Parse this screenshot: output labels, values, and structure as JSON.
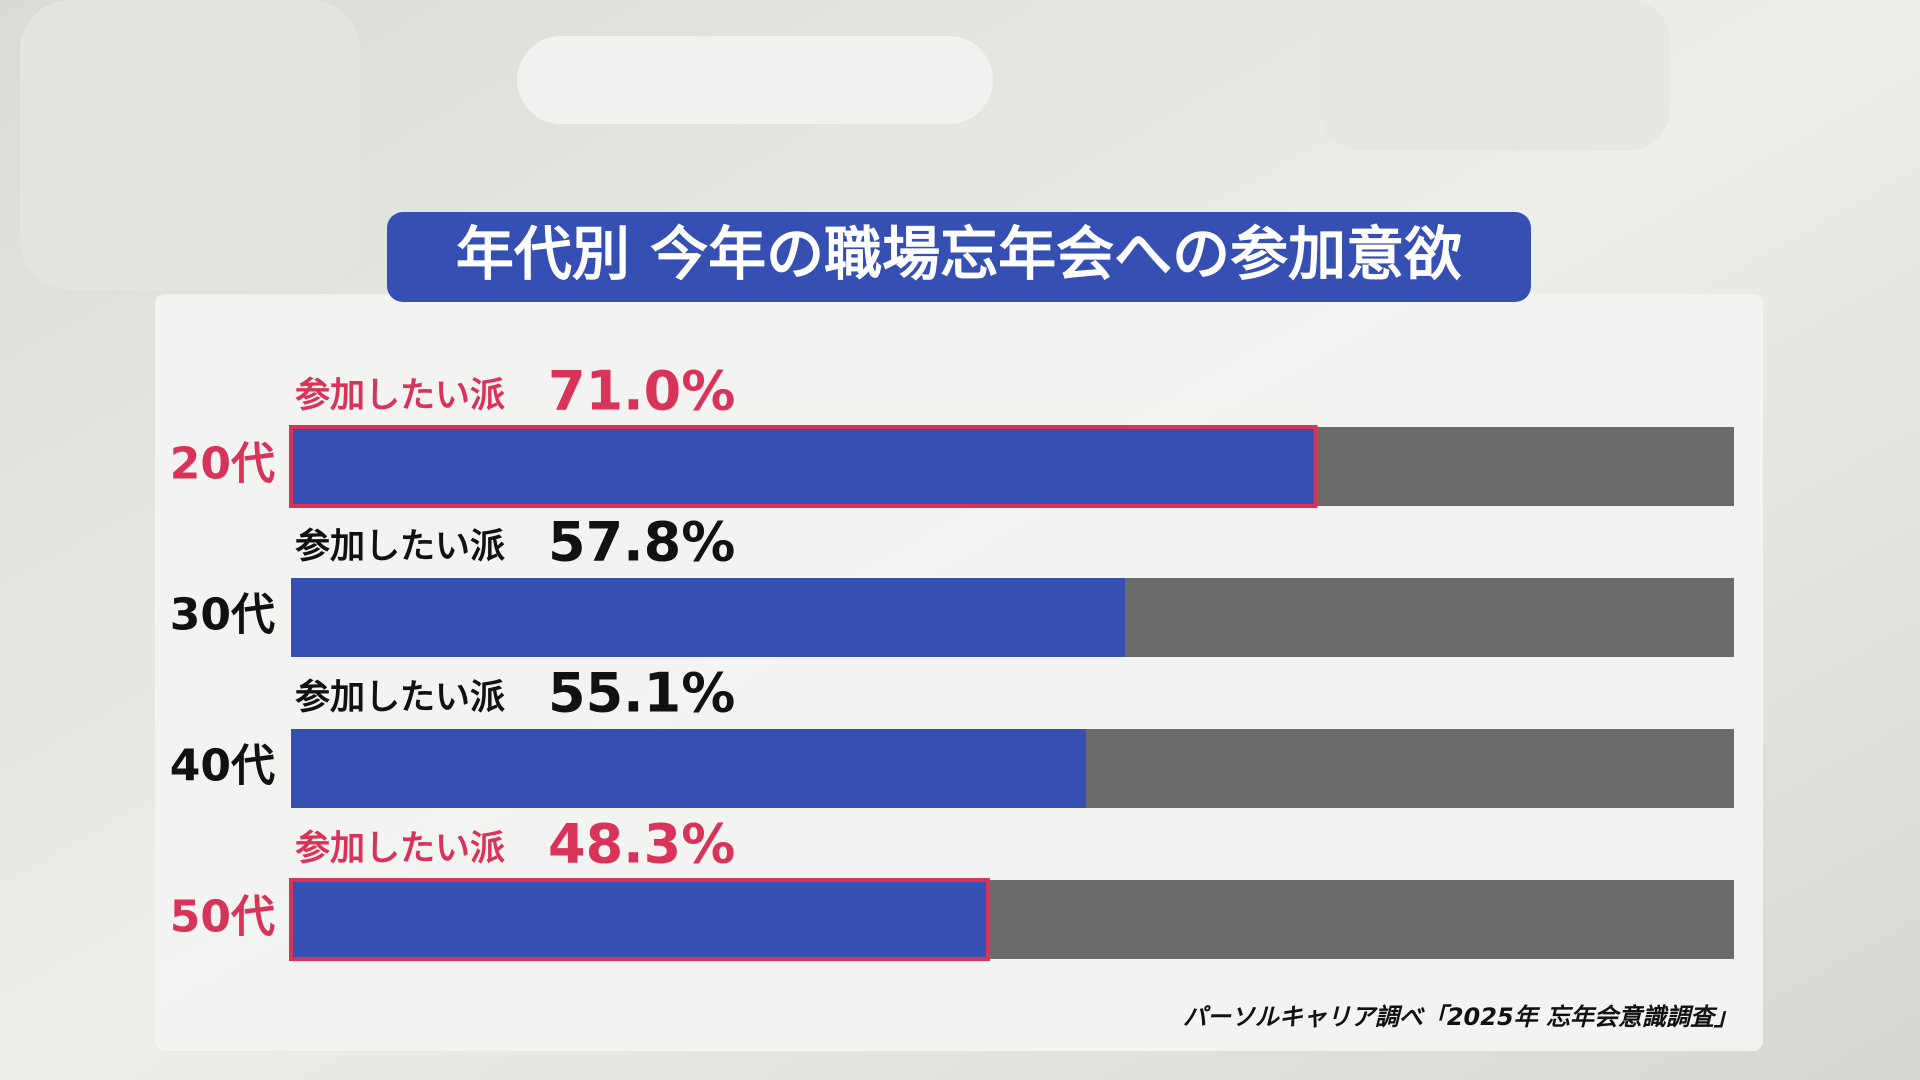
{
  "chart_data": {
    "type": "hbar",
    "title": "年代別 今年の職場忘年会への参加意欲",
    "categories": [
      "20代",
      "30代",
      "40代",
      "50代"
    ],
    "series": [
      {
        "name": "参加したい派",
        "color": "#3550b2",
        "values": [
          71.0,
          57.8,
          55.1,
          48.3
        ],
        "value_labels": [
          "71.0%",
          "57.8%",
          "55.1%",
          "48.3%"
        ]
      }
    ],
    "highlighted": [
      true,
      false,
      false,
      true
    ],
    "highlight_color": "#d8345a",
    "track_color": "#6b6b6b",
    "xlim": [
      0,
      100
    ],
    "source": "パーソルキャリア調べ「2025年 忘年会意識調査」"
  }
}
